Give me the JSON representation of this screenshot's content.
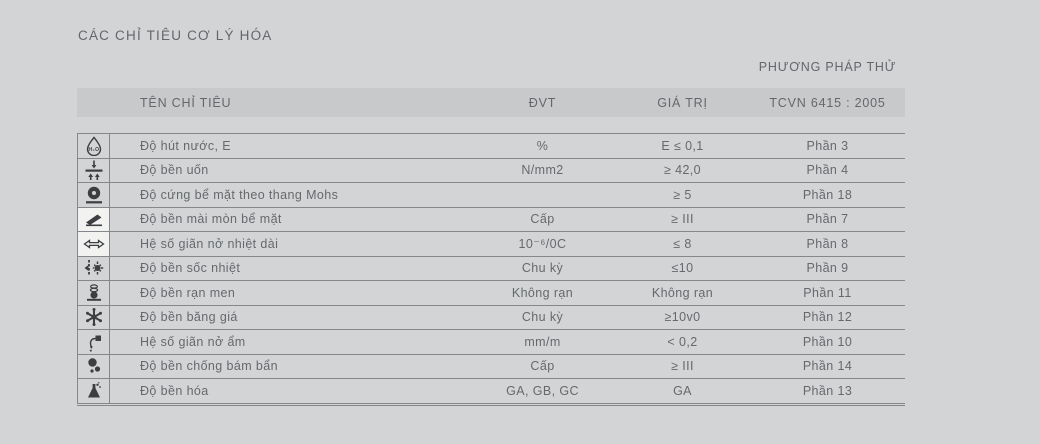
{
  "title": "CÁC CHỈ TIÊU CƠ LÝ HÓA",
  "table": {
    "method_header": "PHƯƠNG PHÁP THỬ",
    "columns": {
      "name": "TÊN CHỈ TIÊU",
      "unit": "ĐVT",
      "value": "GIÁ TRỊ",
      "method": "TCVN 6415 : 2005"
    },
    "rows": [
      {
        "icon": "water-absorption-icon",
        "name": "Độ hút nước, E",
        "unit": "%",
        "value": "E ≤ 0,1",
        "method": "Phần 3",
        "icon_tile": false
      },
      {
        "icon": "flexural-strength-icon",
        "name": "Độ bền uốn",
        "unit": "N/mm2",
        "value": "≥ 42,0",
        "method": "Phần 4",
        "icon_tile": false
      },
      {
        "icon": "mohs-hardness-icon",
        "name": "Độ cứng bể mặt theo thang Mohs",
        "unit": "",
        "value": "≥ 5",
        "method": "Phần 18",
        "icon_tile": false
      },
      {
        "icon": "abrasion-resistance-icon",
        "name": "Độ bền mài mòn bể mặt",
        "unit": "Cấp",
        "value": "≥ III",
        "method": "Phần 7",
        "icon_tile": true
      },
      {
        "icon": "thermal-expansion-icon",
        "name": "Hệ số giãn nở nhiệt dài",
        "unit": "10⁻⁶/0C",
        "value": "≤ 8",
        "method": "Phần 8",
        "icon_tile": true
      },
      {
        "icon": "thermal-shock-icon",
        "name": "Độ bền sốc nhiệt",
        "unit": "Chu kỳ",
        "value": "≤10",
        "method": "Phần 9",
        "icon_tile": false
      },
      {
        "icon": "crazing-resistance-icon",
        "name": "Độ bền rạn men",
        "unit": "Không rạn",
        "value": "Không rạn",
        "method": "Phần 11",
        "icon_tile": false
      },
      {
        "icon": "frost-resistance-icon",
        "name": "Độ bền băng giá",
        "unit": "Chu kỳ",
        "value": "≥10v0",
        "method": "Phần 12",
        "icon_tile": false
      },
      {
        "icon": "moisture-expansion-icon",
        "name": "Hệ số giãn nở ẩm",
        "unit": "mm/m",
        "value": "< 0,2",
        "method": "Phần 10",
        "icon_tile": false
      },
      {
        "icon": "stain-resistance-icon",
        "name": "Độ bền chống bám bẩn",
        "unit": "Cấp",
        "value": "≥ III",
        "method": "Phần 14",
        "icon_tile": false
      },
      {
        "icon": "chemical-resistance-icon",
        "name": "Độ bền hóa",
        "unit": "GA, GB, GC",
        "value": "GA",
        "method": "Phần 13",
        "icon_tile": false
      }
    ]
  },
  "colors": {
    "background": "#d3d4d6",
    "header_band": "#c7c9cb",
    "line": "#85878a",
    "text": "#66696c",
    "icon": "#3c3e40"
  }
}
